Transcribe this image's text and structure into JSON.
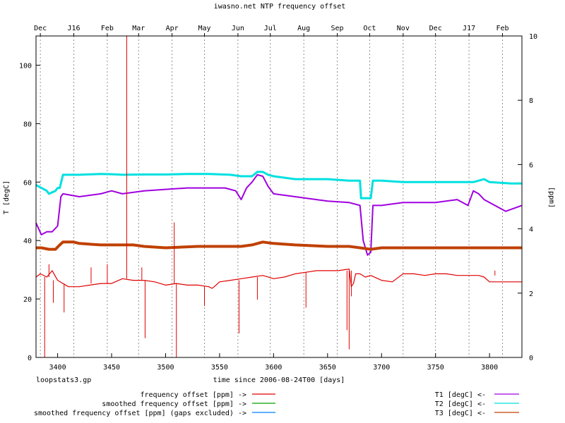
{
  "chart_data": {
    "type": "line",
    "title": "iwasno.net NTP frequency offset",
    "xlabel": "time since 2006-08-24T00 [days]",
    "ylabel_left": "T [degC]",
    "ylabel_right": "[ppm]",
    "footer_left": "loopstats3.gp",
    "xlim": [
      3380,
      3830
    ],
    "ylim_left": [
      0,
      110
    ],
    "ylim_right": [
      0,
      10
    ],
    "x_ticks": [
      3400,
      3450,
      3500,
      3550,
      3600,
      3650,
      3700,
      3750,
      3800
    ],
    "y_ticks_left": [
      0,
      20,
      40,
      60,
      80,
      100
    ],
    "y_ticks_right": [
      0,
      2,
      4,
      6,
      8,
      10
    ],
    "month_ticks": [
      {
        "label": "Dec",
        "x": 3384
      },
      {
        "label": "J16",
        "x": 3415
      },
      {
        "label": "Feb",
        "x": 3446
      },
      {
        "label": "Mar",
        "x": 3475
      },
      {
        "label": "Apr",
        "x": 3506
      },
      {
        "label": "May",
        "x": 3536
      },
      {
        "label": "Jun",
        "x": 3567
      },
      {
        "label": "Jul",
        "x": 3597
      },
      {
        "label": "Aug",
        "x": 3628
      },
      {
        "label": "Sep",
        "x": 3659
      },
      {
        "label": "Oct",
        "x": 3689
      },
      {
        "label": "Nov",
        "x": 3720
      },
      {
        "label": "Dec",
        "x": 3750
      },
      {
        "label": "J17",
        "x": 3781
      },
      {
        "label": "Feb",
        "x": 3812
      }
    ],
    "grid": true,
    "legend": [
      {
        "name": "frequency offset [ppm] ->",
        "color": "#e00000"
      },
      {
        "name": "smoothed frequency offset [ppm] ->",
        "color": "#00a000"
      },
      {
        "name": "smoothed frequency offset [ppm] (gaps excluded) ->",
        "color": "#0080ff"
      },
      {
        "name": "T1 [degC] <-",
        "color": "#a000e0"
      },
      {
        "name": "T2 [degC] <-",
        "color": "#00e0e0"
      },
      {
        "name": "T3 [degC] <-",
        "color": "#c04000"
      }
    ],
    "series": [
      {
        "name": "T2 [degC] <-",
        "axis": "left",
        "color": "#00e0e0",
        "width": 3,
        "x": [
          3380,
          3390,
          3392,
          3398,
          3400,
          3402,
          3405,
          3420,
          3440,
          3450,
          3460,
          3480,
          3500,
          3520,
          3540,
          3560,
          3570,
          3580,
          3585,
          3590,
          3595,
          3600,
          3620,
          3650,
          3670,
          3680,
          3681,
          3690,
          3692,
          3695,
          3700,
          3720,
          3750,
          3775,
          3785,
          3795,
          3800,
          3820,
          3830
        ],
        "y": [
          59,
          57,
          56,
          57,
          58,
          58,
          62.5,
          62.5,
          62.8,
          62.7,
          62.5,
          62.6,
          62.6,
          62.8,
          62.8,
          62.5,
          62,
          62,
          63.5,
          63.5,
          62.5,
          62,
          61,
          61,
          60.5,
          60.5,
          54.5,
          54.5,
          60.5,
          60.5,
          60.5,
          60,
          60,
          60,
          60,
          61,
          60,
          59.5,
          59.5
        ]
      },
      {
        "name": "T1 [degC] <-",
        "axis": "left",
        "color": "#a000e0",
        "width": 2,
        "x": [
          3380,
          3385,
          3390,
          3395,
          3400,
          3403,
          3405,
          3420,
          3440,
          3450,
          3460,
          3480,
          3500,
          3520,
          3540,
          3555,
          3565,
          3570,
          3575,
          3580,
          3585,
          3590,
          3595,
          3600,
          3620,
          3650,
          3670,
          3680,
          3683,
          3687,
          3690,
          3692,
          3700,
          3720,
          3750,
          3770,
          3780,
          3785,
          3790,
          3795,
          3800,
          3815,
          3830
        ],
        "y": [
          46,
          42,
          43,
          43,
          45,
          55,
          56,
          55,
          56,
          57,
          56,
          57,
          57.5,
          58,
          58,
          58,
          57,
          54,
          58,
          60,
          62.5,
          62,
          58.5,
          56,
          55,
          53.5,
          53,
          52,
          40,
          35,
          36,
          52,
          52,
          53,
          53,
          54,
          52,
          57,
          56,
          54,
          53,
          50,
          52
        ]
      },
      {
        "name": "T3 [degC] <-",
        "axis": "left",
        "color": "#c04000",
        "width": 4,
        "x": [
          3380,
          3385,
          3392,
          3398,
          3402,
          3405,
          3415,
          3420,
          3440,
          3455,
          3470,
          3480,
          3500,
          3530,
          3560,
          3570,
          3580,
          3590,
          3600,
          3620,
          3650,
          3670,
          3680,
          3690,
          3700,
          3750,
          3800,
          3830
        ],
        "y": [
          37.5,
          37.5,
          37,
          37,
          38.5,
          39.5,
          39.5,
          39,
          38.5,
          38.5,
          38.5,
          38,
          37.5,
          38,
          38,
          38,
          38.5,
          39.5,
          39,
          38.5,
          38,
          38,
          37.5,
          37,
          37.5,
          37.5,
          37.5,
          37.5
        ]
      },
      {
        "name": "frequency offset [ppm] ->",
        "axis": "right",
        "color": "#e00000",
        "width": 1.2,
        "x": [
          3380,
          3384,
          3390,
          3395,
          3400,
          3405,
          3410,
          3420,
          3430,
          3440,
          3450,
          3460,
          3470,
          3480,
          3490,
          3500,
          3510,
          3520,
          3530,
          3540,
          3543,
          3545,
          3550,
          3560,
          3570,
          3580,
          3590,
          3600,
          3610,
          3620,
          3630,
          3640,
          3650,
          3660,
          3670,
          3672,
          3674,
          3676,
          3680,
          3685,
          3690,
          3700,
          3710,
          3720,
          3730,
          3740,
          3750,
          3760,
          3770,
          3780,
          3790,
          3795,
          3800,
          3810,
          3820,
          3830
        ],
        "y": [
          2.5,
          2.6,
          2.5,
          2.7,
          2.4,
          2.3,
          2.2,
          2.2,
          2.25,
          2.3,
          2.3,
          2.45,
          2.4,
          2.4,
          2.35,
          2.25,
          2.3,
          2.25,
          2.25,
          2.2,
          2.15,
          2.2,
          2.35,
          2.4,
          2.45,
          2.5,
          2.55,
          2.45,
          2.5,
          2.6,
          2.65,
          2.7,
          2.7,
          2.7,
          2.75,
          2.2,
          2.3,
          2.6,
          2.6,
          2.5,
          2.55,
          2.4,
          2.35,
          2.6,
          2.6,
          2.55,
          2.6,
          2.6,
          2.55,
          2.55,
          2.55,
          2.5,
          2.35,
          2.35,
          2.35,
          2.35
        ]
      },
      {
        "name": "frequency offset [ppm] -> spikes",
        "axis": "right",
        "color": "#e00000",
        "width": 1,
        "spikes": [
          [
            3388,
            2.5,
            0.0
          ],
          [
            3392,
            2.5,
            2.9
          ],
          [
            3396,
            2.4,
            1.7
          ],
          [
            3406,
            2.3,
            1.4
          ],
          [
            3431,
            2.3,
            2.8
          ],
          [
            3446,
            2.3,
            2.9
          ],
          [
            3464,
            2.45,
            10.0
          ],
          [
            3478,
            2.4,
            2.8
          ],
          [
            3481,
            2.4,
            0.6
          ],
          [
            3508,
            2.3,
            4.2
          ],
          [
            3510,
            2.3,
            0.0
          ],
          [
            3536,
            2.2,
            1.6
          ],
          [
            3568,
            2.4,
            0.75
          ],
          [
            3585,
            2.5,
            1.8
          ],
          [
            3630,
            2.65,
            1.55
          ],
          [
            3668,
            2.7,
            0.85
          ],
          [
            3670,
            2.7,
            0.25
          ],
          [
            3672,
            2.7,
            1.9
          ],
          [
            3805,
            2.55,
            2.7
          ]
        ]
      }
    ]
  }
}
